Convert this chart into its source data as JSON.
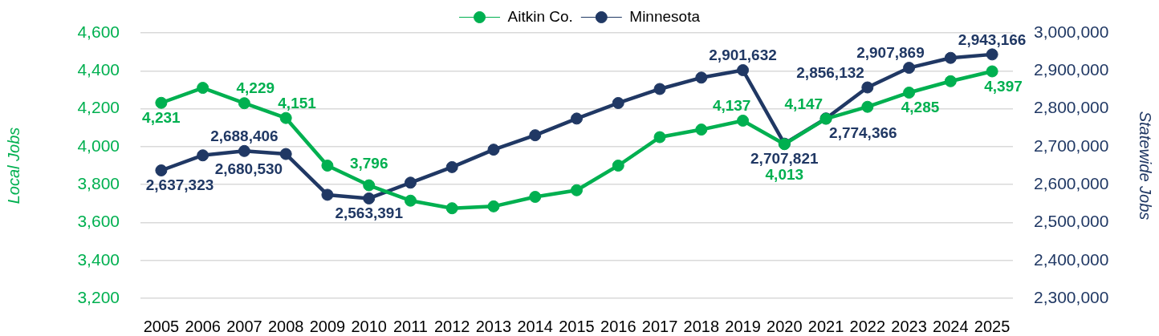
{
  "chart_data": {
    "type": "line",
    "categories": [
      "2005",
      "2006",
      "2007",
      "2008",
      "2009",
      "2010",
      "2011",
      "2012",
      "2013",
      "2014",
      "2015",
      "2016",
      "2017",
      "2018",
      "2019",
      "2020",
      "2021",
      "2022",
      "2023",
      "2024",
      "2025"
    ],
    "series": [
      {
        "name": "Aitkin Co.",
        "color": "#00b050",
        "axis": "y",
        "values": [
          4231,
          4310,
          4229,
          4151,
          3900,
          3796,
          3715,
          3675,
          3685,
          3735,
          3770,
          3900,
          4050,
          4090,
          4137,
          4013,
          4147,
          4210,
          4285,
          4345,
          4397
        ],
        "value_labels": [
          "4,231",
          null,
          "4,229",
          "4,151",
          null,
          "3,796",
          null,
          null,
          null,
          null,
          null,
          null,
          null,
          null,
          "4,137",
          "4,013",
          "4,147",
          null,
          "4,285",
          null,
          "4,397"
        ]
      },
      {
        "name": "Minnesota",
        "color": "#203864",
        "axis": "y2",
        "values": [
          2637323,
          2677000,
          2688406,
          2680530,
          2573000,
          2563391,
          2605000,
          2646000,
          2692000,
          2730000,
          2774000,
          2815000,
          2852000,
          2882000,
          2901632,
          2707821,
          2774366,
          2856132,
          2907869,
          2934000,
          2943166
        ],
        "value_labels": [
          "2,637,323",
          null,
          "2,688,406",
          "2,680,530",
          null,
          "2,563,391",
          null,
          null,
          null,
          null,
          null,
          null,
          null,
          null,
          "2,901,632",
          "2,707,821",
          "2,774,366",
          "2,856,132",
          "2,907,869",
          null,
          "2,943,166"
        ]
      }
    ],
    "ylim": [
      3200,
      4600
    ],
    "yticks": [
      {
        "value": 3200,
        "label": "3,200"
      },
      {
        "value": 3400,
        "label": "3,400"
      },
      {
        "value": 3600,
        "label": "3,600"
      },
      {
        "value": 3800,
        "label": "3,800"
      },
      {
        "value": 4000,
        "label": "4,000"
      },
      {
        "value": 4200,
        "label": "4,200"
      },
      {
        "value": 4400,
        "label": "4,400"
      },
      {
        "value": 4600,
        "label": "4,600"
      }
    ],
    "y2lim": [
      2300000,
      3000000
    ],
    "y2ticks": [
      {
        "value": 2300000,
        "label": "2,300,000"
      },
      {
        "value": 2400000,
        "label": "2,400,000"
      },
      {
        "value": 2500000,
        "label": "2,500,000"
      },
      {
        "value": 2600000,
        "label": "2,600,000"
      },
      {
        "value": 2700000,
        "label": "2,700,000"
      },
      {
        "value": 2800000,
        "label": "2,800,000"
      },
      {
        "value": 2900000,
        "label": "2,900,000"
      },
      {
        "value": 3000000,
        "label": "3,000,000"
      }
    ],
    "ylabel": "Local Jobs",
    "y2label": "Statewide Jobs",
    "grid": "y",
    "legend": "top",
    "marker": "circle",
    "line_style": "solid"
  }
}
